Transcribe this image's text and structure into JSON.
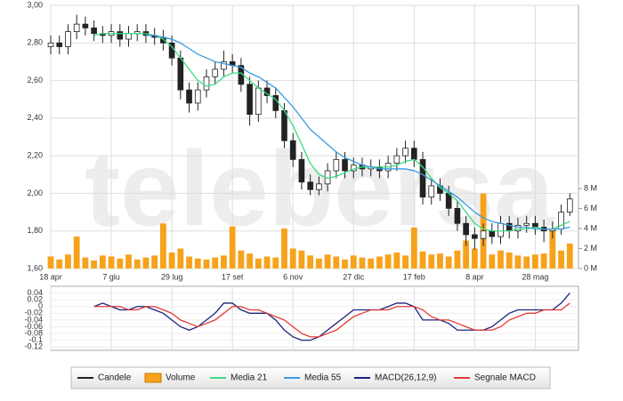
{
  "chart_data": [
    {
      "type": "candlestick",
      "watermark": "telebersa",
      "x": [
        0,
        1,
        2,
        3,
        4,
        5,
        6,
        7,
        8,
        9,
        10,
        11,
        12,
        13,
        14,
        15,
        16,
        17,
        18,
        19,
        20,
        21,
        22,
        23,
        24,
        25,
        26,
        27,
        28,
        29,
        30,
        31,
        32,
        33,
        34,
        35,
        36,
        37,
        38,
        39,
        40,
        41,
        42,
        43,
        44,
        45,
        46,
        47,
        48,
        49,
        50,
        51,
        52,
        53,
        54,
        55,
        56,
        57,
        58,
        59,
        60
      ],
      "xlim": [
        0,
        61
      ],
      "xticks": [
        {
          "value": 0,
          "label": "18 apr"
        },
        {
          "value": 7,
          "label": "7 giu"
        },
        {
          "value": 14,
          "label": "29 lug"
        },
        {
          "value": 21,
          "label": "17 set"
        },
        {
          "value": 28,
          "label": "6 nov"
        },
        {
          "value": 35,
          "label": "27 dic"
        },
        {
          "value": 42,
          "label": "17 feb"
        },
        {
          "value": 49,
          "label": "8 apr"
        },
        {
          "value": 56,
          "label": "28 mag"
        }
      ],
      "ylim": [
        1.6,
        3.0
      ],
      "yticks": [
        {
          "value": 1.6,
          "label": "1,60"
        },
        {
          "value": 1.8,
          "label": "1,80"
        },
        {
          "value": 2.0,
          "label": "2,00"
        },
        {
          "value": 2.2,
          "label": "2,20"
        },
        {
          "value": 2.4,
          "label": "2,40"
        },
        {
          "value": 2.6,
          "label": "2,60"
        },
        {
          "value": 2.8,
          "label": "2,80"
        },
        {
          "value": 3.0,
          "label": "3,00"
        }
      ],
      "y2lim": [
        0,
        26.3
      ],
      "y2ticks": [
        {
          "value": 0,
          "label": "0 M"
        },
        {
          "value": 2,
          "label": "2 M"
        },
        {
          "value": 4,
          "label": "4 M"
        },
        {
          "value": 6,
          "label": "6 M"
        },
        {
          "value": 8,
          "label": "8 M"
        }
      ],
      "grid": true,
      "candles": {
        "name": "Candele",
        "color": "#222222",
        "open": [
          2.78,
          2.8,
          2.78,
          2.86,
          2.9,
          2.88,
          2.85,
          2.84,
          2.86,
          2.82,
          2.85,
          2.86,
          2.84,
          2.83,
          2.8,
          2.72,
          2.55,
          2.48,
          2.55,
          2.62,
          2.66,
          2.7,
          2.68,
          2.58,
          2.42,
          2.56,
          2.52,
          2.44,
          2.28,
          2.18,
          2.06,
          2.02,
          2.05,
          2.12,
          2.18,
          2.12,
          2.15,
          2.13,
          2.14,
          2.12,
          2.16,
          2.2,
          2.24,
          2.18,
          1.98,
          2.04,
          2.0,
          1.92,
          1.84,
          1.78,
          1.76,
          1.8,
          1.77,
          1.84,
          1.8,
          1.83,
          1.84,
          1.82,
          1.8,
          1.81,
          1.9
        ],
        "high": [
          2.84,
          2.84,
          2.9,
          2.95,
          2.94,
          2.92,
          2.89,
          2.9,
          2.9,
          2.89,
          2.9,
          2.9,
          2.88,
          2.87,
          2.84,
          2.76,
          2.59,
          2.59,
          2.66,
          2.7,
          2.76,
          2.74,
          2.72,
          2.62,
          2.6,
          2.6,
          2.56,
          2.48,
          2.32,
          2.22,
          2.1,
          2.09,
          2.16,
          2.22,
          2.22,
          2.19,
          2.19,
          2.18,
          2.18,
          2.2,
          2.24,
          2.28,
          2.28,
          2.22,
          2.08,
          2.08,
          2.04,
          1.96,
          1.88,
          1.82,
          1.84,
          1.84,
          1.88,
          1.88,
          1.87,
          1.88,
          1.88,
          1.86,
          1.85,
          1.94,
          2.0
        ],
        "low": [
          2.74,
          2.74,
          2.74,
          2.82,
          2.84,
          2.81,
          2.8,
          2.8,
          2.78,
          2.78,
          2.81,
          2.8,
          2.79,
          2.76,
          2.68,
          2.5,
          2.43,
          2.44,
          2.51,
          2.58,
          2.62,
          2.64,
          2.54,
          2.36,
          2.38,
          2.48,
          2.4,
          2.24,
          2.14,
          2.02,
          1.99,
          1.99,
          2.01,
          2.08,
          2.08,
          2.08,
          2.09,
          2.09,
          2.08,
          2.08,
          2.12,
          2.16,
          2.14,
          1.94,
          1.94,
          1.96,
          1.88,
          1.8,
          1.72,
          1.7,
          1.72,
          1.73,
          1.73,
          1.76,
          1.76,
          1.79,
          1.78,
          1.74,
          1.76,
          1.78,
          1.88
        ],
        "close": [
          2.8,
          2.78,
          2.86,
          2.9,
          2.88,
          2.85,
          2.84,
          2.86,
          2.82,
          2.85,
          2.86,
          2.84,
          2.83,
          2.8,
          2.72,
          2.55,
          2.48,
          2.55,
          2.62,
          2.66,
          2.7,
          2.68,
          2.58,
          2.42,
          2.56,
          2.52,
          2.44,
          2.28,
          2.18,
          2.06,
          2.02,
          2.05,
          2.12,
          2.18,
          2.12,
          2.15,
          2.13,
          2.14,
          2.12,
          2.16,
          2.2,
          2.24,
          2.18,
          1.98,
          2.04,
          2.0,
          1.92,
          1.84,
          1.78,
          1.76,
          1.8,
          1.77,
          1.84,
          1.8,
          1.83,
          1.84,
          1.82,
          1.8,
          1.81,
          1.9,
          1.97
        ]
      },
      "series": [
        {
          "name": "Volume",
          "type": "bar",
          "axis": "y2",
          "color": "#f7a21b",
          "values": [
            1.2,
            0.9,
            1.4,
            3.2,
            1.1,
            0.8,
            1.3,
            1.2,
            1.0,
            1.4,
            0.9,
            1.1,
            1.3,
            4.5,
            1.6,
            2.0,
            1.2,
            1.0,
            0.9,
            1.1,
            1.3,
            4.2,
            1.8,
            1.5,
            1.0,
            1.2,
            1.1,
            4.0,
            2.0,
            1.8,
            1.3,
            1.0,
            1.4,
            1.2,
            0.9,
            1.3,
            1.1,
            1.0,
            1.2,
            1.4,
            1.6,
            1.3,
            4.1,
            1.7,
            1.4,
            1.5,
            1.2,
            1.8,
            2.8,
            2.0,
            7.5,
            1.4,
            1.8,
            1.6,
            1.3,
            1.2,
            1.4,
            1.5,
            4.0,
            1.8,
            2.5
          ]
        },
        {
          "name": "Media 21",
          "type": "line",
          "color": "#3ddc84",
          "values": [
            null,
            null,
            null,
            null,
            null,
            2.84,
            2.85,
            2.85,
            2.85,
            2.85,
            2.85,
            2.85,
            2.84,
            2.82,
            2.78,
            2.72,
            2.66,
            2.6,
            2.57,
            2.58,
            2.62,
            2.64,
            2.64,
            2.6,
            2.56,
            2.53,
            2.5,
            2.44,
            2.36,
            2.26,
            2.16,
            2.1,
            2.08,
            2.09,
            2.11,
            2.13,
            2.14,
            2.14,
            2.14,
            2.14,
            2.15,
            2.17,
            2.18,
            2.14,
            2.08,
            2.03,
            2.0,
            1.96,
            1.9,
            1.84,
            1.81,
            1.8,
            1.8,
            1.8,
            1.81,
            1.81,
            1.82,
            1.81,
            1.81,
            1.83,
            1.85
          ]
        },
        {
          "name": "Media 55",
          "type": "line",
          "color": "#3a9be0",
          "values": [
            null,
            null,
            null,
            null,
            null,
            null,
            null,
            null,
            null,
            null,
            null,
            2.84,
            2.84,
            2.83,
            2.82,
            2.8,
            2.77,
            2.74,
            2.72,
            2.7,
            2.69,
            2.68,
            2.67,
            2.64,
            2.62,
            2.59,
            2.56,
            2.51,
            2.46,
            2.4,
            2.34,
            2.3,
            2.26,
            2.22,
            2.19,
            2.17,
            2.15,
            2.14,
            2.13,
            2.13,
            2.13,
            2.13,
            2.12,
            2.1,
            2.07,
            2.04,
            2.01,
            1.98,
            1.94,
            1.9,
            1.87,
            1.85,
            1.84,
            1.83,
            1.82,
            1.82,
            1.81,
            1.81,
            1.81,
            1.81,
            1.82
          ]
        }
      ]
    },
    {
      "type": "line",
      "x": [
        0,
        1,
        2,
        3,
        4,
        5,
        6,
        7,
        8,
        9,
        10,
        11,
        12,
        13,
        14,
        15,
        16,
        17,
        18,
        19,
        20,
        21,
        22,
        23,
        24,
        25,
        26,
        27,
        28,
        29,
        30,
        31,
        32,
        33,
        34,
        35,
        36,
        37,
        38,
        39,
        40,
        41,
        42,
        43,
        44,
        45,
        46,
        47,
        48,
        49,
        50,
        51,
        52,
        53,
        54,
        55,
        56,
        57,
        58,
        59,
        60
      ],
      "xlim": [
        0,
        61
      ],
      "ylim": [
        -0.13,
        0.06
      ],
      "yticks": [
        0.04,
        0.02,
        0,
        -0.02,
        -0.04,
        -0.06,
        -0.08,
        -0.1,
        -0.12
      ],
      "series": [
        {
          "name": "MACD(26,12,9)",
          "color": "#1a237e",
          "values": [
            null,
            null,
            null,
            null,
            null,
            0.0,
            0.01,
            0.0,
            -0.01,
            -0.01,
            0.0,
            0.0,
            -0.01,
            -0.02,
            -0.04,
            -0.06,
            -0.07,
            -0.06,
            -0.04,
            -0.02,
            0.01,
            0.01,
            -0.01,
            -0.02,
            -0.02,
            -0.02,
            -0.04,
            -0.07,
            -0.09,
            -0.1,
            -0.1,
            -0.09,
            -0.07,
            -0.05,
            -0.03,
            -0.01,
            -0.01,
            -0.01,
            -0.01,
            0.0,
            0.01,
            0.01,
            0.0,
            -0.04,
            -0.04,
            -0.04,
            -0.05,
            -0.07,
            -0.07,
            -0.07,
            -0.07,
            -0.06,
            -0.04,
            -0.02,
            -0.01,
            -0.01,
            -0.01,
            -0.01,
            -0.01,
            0.01,
            0.04
          ]
        },
        {
          "name": "Segnale MACD",
          "color": "#e53935",
          "values": [
            null,
            null,
            null,
            null,
            null,
            0.0,
            0.0,
            0.0,
            0.0,
            -0.01,
            -0.01,
            0.0,
            0.0,
            -0.01,
            -0.02,
            -0.04,
            -0.05,
            -0.06,
            -0.05,
            -0.04,
            -0.02,
            0.0,
            0.0,
            -0.01,
            -0.01,
            -0.02,
            -0.03,
            -0.04,
            -0.06,
            -0.08,
            -0.09,
            -0.09,
            -0.08,
            -0.07,
            -0.05,
            -0.03,
            -0.02,
            -0.01,
            -0.01,
            -0.01,
            0.0,
            0.0,
            0.0,
            -0.01,
            -0.03,
            -0.04,
            -0.04,
            -0.05,
            -0.06,
            -0.07,
            -0.07,
            -0.07,
            -0.06,
            -0.04,
            -0.03,
            -0.02,
            -0.02,
            -0.01,
            -0.01,
            -0.01,
            0.01
          ]
        }
      ]
    }
  ]
}
